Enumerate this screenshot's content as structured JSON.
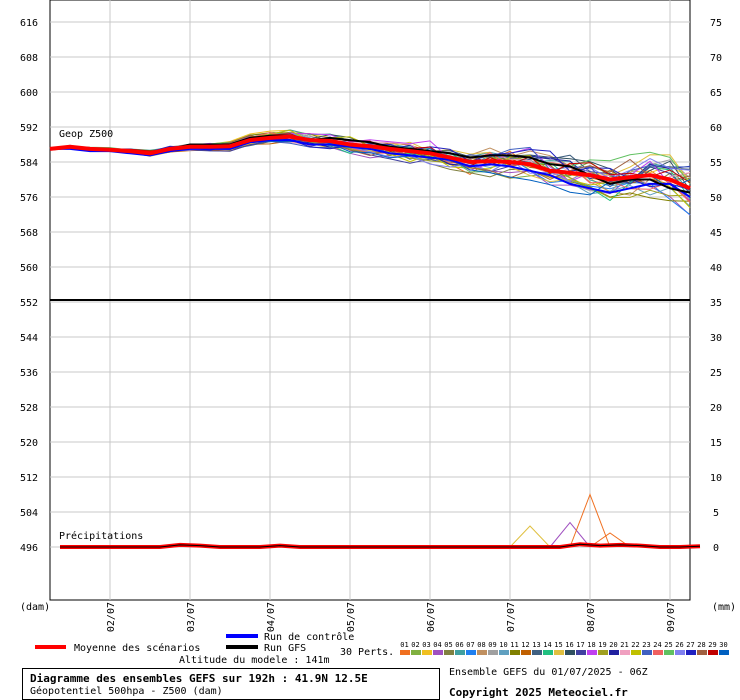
{
  "chart_data": {
    "type": "line",
    "title": "Diagramme des ensembles GEFS sur 192h : 41.9N 12.5E",
    "subtitle": "Géopotentiel 500hpa - Z500 (dam)",
    "left_axis": {
      "label": "(dam)",
      "range": [
        488,
        620
      ],
      "ticks": [
        616,
        608,
        600,
        592,
        584,
        576,
        568,
        560,
        552,
        544,
        536,
        528,
        520,
        512,
        504,
        496
      ]
    },
    "right_axis": {
      "label": "(mm)",
      "ticks_top": [
        75,
        70,
        65,
        60,
        55,
        50,
        45,
        40
      ],
      "ticks_bottom": [
        35,
        30,
        25,
        20,
        15,
        10,
        5,
        0
      ]
    },
    "x_ticks": [
      "02/07",
      "03/07",
      "04/07",
      "05/07",
      "06/07",
      "07/07",
      "08/07",
      "09/07"
    ],
    "x_hours": [
      0,
      6,
      12,
      18,
      24,
      30,
      36,
      42,
      48,
      54,
      60,
      66,
      72,
      78,
      84,
      90,
      96,
      102,
      108,
      114,
      120,
      126,
      132,
      138,
      144,
      150,
      156,
      162,
      168,
      174,
      180,
      186,
      192
    ],
    "panel_labels": {
      "geop": "Geop Z500",
      "precip": "Précipitations"
    },
    "series": [
      {
        "name": "Moyenne des scénarios",
        "color": "#ff0000",
        "values": [
          587,
          587.5,
          587,
          586.8,
          586.5,
          586,
          587,
          587.5,
          587.5,
          587.6,
          589,
          589.5,
          589.8,
          589,
          588.8,
          588,
          587.6,
          587,
          586.5,
          586,
          585,
          584,
          584.2,
          584,
          583.5,
          582,
          581.5,
          581,
          580,
          580.5,
          581,
          580,
          578
        ]
      },
      {
        "name": "Run de contrôle",
        "color": "#0000ff",
        "values": [
          587,
          587,
          586.5,
          586.5,
          586,
          585.5,
          586.5,
          587,
          587,
          587,
          588.5,
          589,
          589,
          588,
          588,
          587.5,
          587,
          586,
          585.5,
          585,
          584.5,
          583,
          583.5,
          583,
          582,
          581,
          579,
          578,
          577,
          578,
          579,
          579,
          576
        ]
      },
      {
        "name": "Run GFS",
        "color": "#000000",
        "values": [
          587,
          587.5,
          587,
          587,
          586.5,
          586,
          587,
          588,
          588,
          588,
          589.5,
          590,
          590,
          589,
          589.5,
          589,
          588.5,
          587.5,
          587,
          586.5,
          586,
          585,
          585.5,
          585.5,
          585,
          583.5,
          583,
          581,
          579,
          580,
          580,
          578,
          577
        ]
      }
    ],
    "precipitation": [
      0,
      0,
      0,
      0,
      0,
      0,
      0.3,
      0.2,
      0,
      0,
      0,
      0.2,
      0,
      0,
      0,
      0,
      0,
      0,
      0,
      0,
      0,
      0,
      0,
      0,
      0,
      0,
      0.4,
      0.2,
      0.3,
      0.2,
      0,
      0,
      0.1
    ],
    "perturbation_colors": [
      "#f07020",
      "#80b040",
      "#f0c020",
      "#a050c0",
      "#808040",
      "#40a0a0",
      "#2080f0",
      "#c09060",
      "#a0a0a0",
      "#60a0c0",
      "#808000",
      "#c06000",
      "#406080",
      "#20c080",
      "#e0c040",
      "#305060",
      "#4040a0",
      "#c040f0",
      "#a0a020",
      "#2020a0",
      "#f0a0c0",
      "#c0c000",
      "#4060c0",
      "#f06060",
      "#60c060",
      "#8080f0",
      "#2020c0",
      "#a06040",
      "#c00000",
      "#0060c0"
    ],
    "perturbations_label": "30 Perts.",
    "perturbation_ids": [
      "01",
      "02",
      "03",
      "04",
      "05",
      "06",
      "07",
      "08",
      "09",
      "10",
      "11",
      "12",
      "13",
      "14",
      "15",
      "16",
      "17",
      "18",
      "19",
      "20",
      "21",
      "22",
      "23",
      "24",
      "25",
      "26",
      "27",
      "28",
      "29",
      "30"
    ],
    "legend": {
      "mean": "Moyenne des scénarios",
      "control": "Run de contrôle",
      "gfs": "Run GFS"
    },
    "altitude": "Altitude du modele : 141m"
  },
  "info": {
    "ensemble": "Ensemble GEFS du 01/07/2025 - 06Z",
    "copyright": "Copyright 2025 Meteociel.fr"
  }
}
